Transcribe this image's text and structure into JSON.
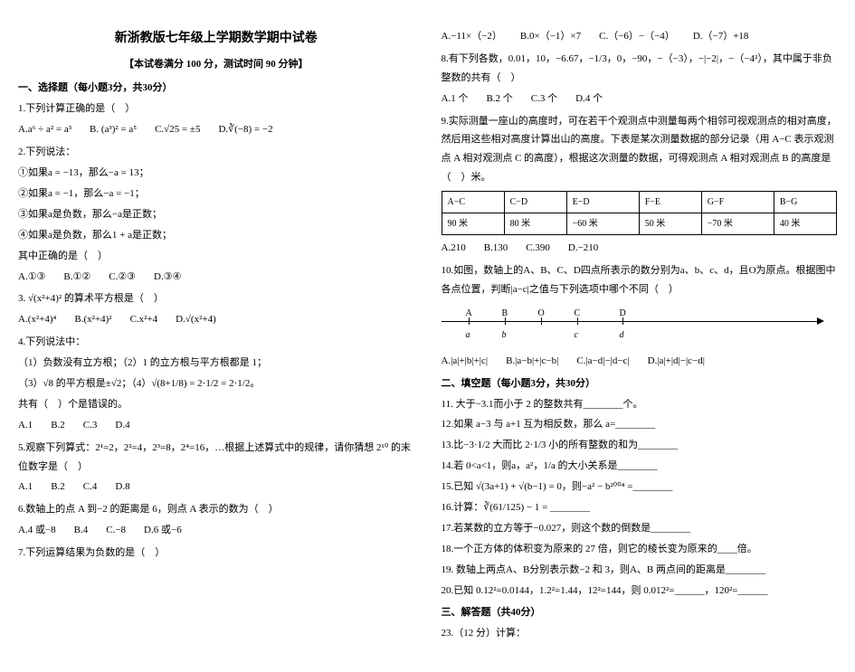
{
  "title": "新浙教版七年级上学期数学期中试卷",
  "subtitle": "【本试卷满分 100 分，测试时间 90 分钟】",
  "left": {
    "sec1": "一、选择题（每小题3分，共30分）",
    "q1": "1.下列计算正确的是（　）",
    "q1a": "A.a⁶ ÷ a² = a³",
    "q1b": "B. (a³)² = a⁵",
    "q1c": "C.√25 = ±5",
    "q1d": "D.∛(−8) = −2",
    "q2": "2.下列说法：",
    "q2_1": "①如果a = −13，那么−a = 13；",
    "q2_2": "②如果a = −1，那么−a = −1；",
    "q2_3": "③如果a是负数，那么−a是正数；",
    "q2_4": "④如果a是负数，那么1 + a是正数；",
    "q2_tail": "其中正确的是（　）",
    "q2a": "A.①③",
    "q2b": "B.①②",
    "q2c": "C.②③",
    "q2d": "D.③④",
    "q3": "3. √(x²+4)² 的算术平方根是（　）",
    "q3a": "A.(x²+4)⁴",
    "q3b": "B.(x²+4)²",
    "q3c": "C.x²+4",
    "q3d": "D.√(x²+4)",
    "q4": "4.下列说法中：",
    "q4_1": "（1）负数没有立方根；（2）1 的立方根与平方根都是 1；",
    "q4_2": "（3）√8 的平方根是±√2；（4）√(8+1/8) = 2·1/2 = 2·1/2。",
    "q4_tail": "共有（　）个是错误的。",
    "q4a": "A.1",
    "q4b": "B.2",
    "q4c": "C.3",
    "q4d": "D.4",
    "q5": "5.观察下列算式：2¹=2，2²=4，2³=8，2⁴=16，…根据上述算式中的规律，请你猜想 2¹⁰ 的末位数字是（　）",
    "q5a": "A.1",
    "q5b": "B.2",
    "q5c": "C.4",
    "q5d": "D.8",
    "q6": "6.数轴上的点 A 到−2 的距离是 6，则点 A 表示的数为（　）",
    "q6a": "A.4 或−8",
    "q6b": "B.4",
    "q6c": "C.−8",
    "q6d": "D.6 或−6",
    "q7": "7.下列运算结果为负数的是（　）"
  },
  "right": {
    "q7a": "A.−11×（−2）",
    "q7b": "B.0×（−1）×7",
    "q7c": "C.（−6）−（−4）",
    "q7d": "D.（−7）+18",
    "q8": "8.有下列各数，0.01，10，−6.67，−1/3，0，−90，−（−3），−|−2|，−（−4²），其中属于非负整数的共有（　）",
    "q8a": "A.1 个",
    "q8b": "B.2 个",
    "q8c": "C.3 个",
    "q8d": "D.4 个",
    "q9": "9.实际测量一座山的高度时，可在若干个观测点中测量每两个相邻可视观测点的相对高度，然后用这些相对高度计算出山的高度。下表是某次测量数据的部分记录（用 A−C 表示观测点 A 相对观测点 C 的高度），根据这次测量的数据，可得观测点 A 相对观测点 B 的高度是（　）米。",
    "table": {
      "headers": [
        "A−C",
        "C−D",
        "E−D",
        "F−E",
        "G−F",
        "B−G"
      ],
      "row": [
        "90 米",
        "80 米",
        "−60 米",
        "50 米",
        "−70 米",
        "40 米"
      ]
    },
    "q9a": "A.210",
    "q9b": "B.130",
    "q9c": "C.390",
    "q9d": "D.−210",
    "q10": "10.如图，数轴上的A、B、C、D四点所表示的数分别为a、b、c、d，且O为原点。根据图中各点位置，判断|a−c|之值与下列选项中哪个不同（　）",
    "numline": {
      "top": [
        "A",
        "B",
        "O",
        "C",
        "D"
      ],
      "bot": [
        "a",
        "b",
        "",
        "c",
        "d"
      ],
      "positions": [
        30,
        70,
        110,
        150,
        200
      ]
    },
    "q10a": "A.|a|+|b|+|c|",
    "q10b": "B.|a−b|+|c−b|",
    "q10c": "C.|a−d|−|d−c|",
    "q10d": "D.|a|+|d|−|c−d|",
    "sec2": "二、填空题（每小题3分，共30分）",
    "q11": "11. 大于−3.1而小于 2 的整数共有________个。",
    "q12": "12.如果 a−3 与 a+1 互为相反数，那么 a=________",
    "q13": "13.比−3·1/2 大而比 2·1/3 小的所有整数的和为________",
    "q14": "14.若 0<a<1，则a，a²，1/a 的大小关系是________",
    "q15": "15.已知 √(3a+1) + √(b−1) = 0，则−a² − b²⁰⁰⁴ =________",
    "q16": "16.计算：∛(61/125) − 1 = ________",
    "q17": "17.若某数的立方等于−0.027，则这个数的倒数是________",
    "q18": "18.一个正方体的体积变为原来的 27 倍，则它的棱长变为原来的____倍。",
    "q19": "19. 数轴上两点A、B分别表示数−2 和 3，则A、B 两点间的距离是________",
    "q20": "20.已知 0.12²=0.0144，1.2²=1.44，12²=144，则 0.012²=______，120²=______",
    "sec3": "三、解答题（共40分）",
    "q23": "23.（12 分）计算："
  }
}
